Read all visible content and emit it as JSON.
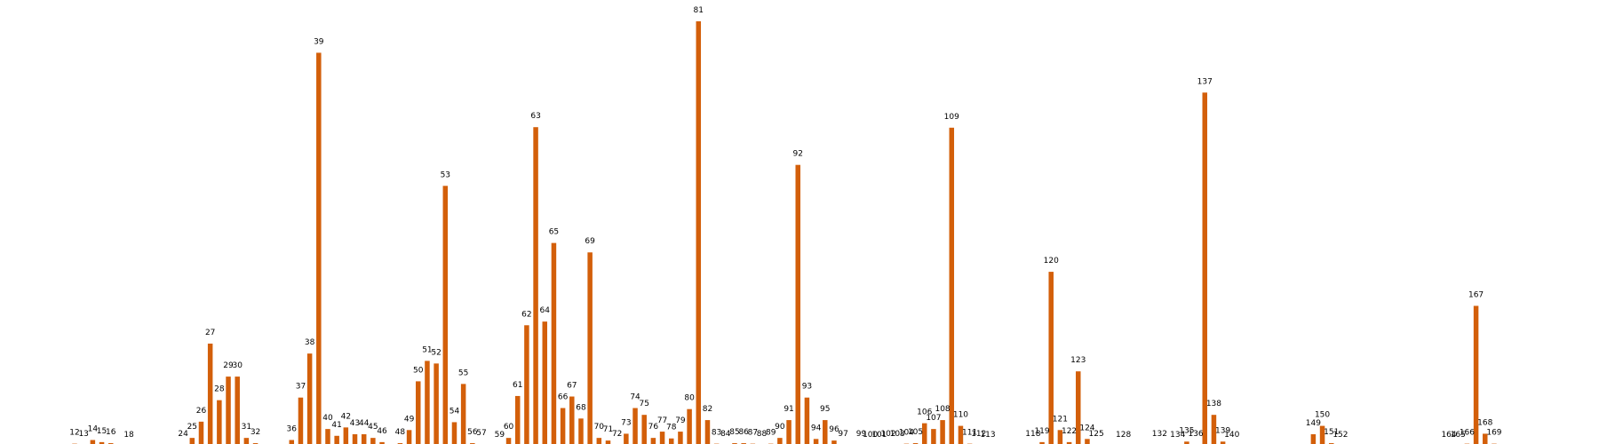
{
  "chart_data": {
    "type": "bar",
    "bar_color": "#d35f0a",
    "grid": false,
    "axes_visible": false,
    "title": "",
    "xlabel": "",
    "ylabel": "",
    "ylim": [
      0,
      81
    ],
    "bars": [
      {
        "x": 12,
        "label": "12",
        "value": 0.4
      },
      {
        "x": 13,
        "label": "13",
        "value": 0.2
      },
      {
        "x": 14,
        "label": "14",
        "value": 1.1
      },
      {
        "x": 15,
        "label": "15",
        "value": 0.7
      },
      {
        "x": 16,
        "label": "16",
        "value": 0.5
      },
      {
        "x": 18,
        "label": "18",
        "value": 0.0
      },
      {
        "x": 24,
        "label": "24",
        "value": 0.2
      },
      {
        "x": 25,
        "label": "25",
        "value": 1.5
      },
      {
        "x": 26,
        "label": "26",
        "value": 4.6
      },
      {
        "x": 27,
        "label": "27",
        "value": 19.5
      },
      {
        "x": 28,
        "label": "28",
        "value": 8.7
      },
      {
        "x": 29,
        "label": "29",
        "value": 13.2
      },
      {
        "x": 30,
        "label": "30",
        "value": 13.2
      },
      {
        "x": 31,
        "label": "31",
        "value": 1.5
      },
      {
        "x": 32,
        "label": "32",
        "value": 0.5
      },
      {
        "x": 36,
        "label": "36",
        "value": 1.1
      },
      {
        "x": 37,
        "label": "37",
        "value": 9.2
      },
      {
        "x": 38,
        "label": "38",
        "value": 17.6
      },
      {
        "x": 39,
        "label": "39",
        "value": 75.0
      },
      {
        "x": 40,
        "label": "40",
        "value": 3.2
      },
      {
        "x": 41,
        "label": "41",
        "value": 1.9
      },
      {
        "x": 42,
        "label": "42",
        "value": 3.5
      },
      {
        "x": 43,
        "label": "43",
        "value": 2.2
      },
      {
        "x": 44,
        "label": "44",
        "value": 2.2
      },
      {
        "x": 45,
        "label": "45",
        "value": 1.5
      },
      {
        "x": 46,
        "label": "46",
        "value": 0.7
      },
      {
        "x": 48,
        "label": "48",
        "value": 0.5
      },
      {
        "x": 49,
        "label": "49",
        "value": 3.0
      },
      {
        "x": 50,
        "label": "50",
        "value": 12.3
      },
      {
        "x": 51,
        "label": "51",
        "value": 16.2
      },
      {
        "x": 52,
        "label": "52",
        "value": 15.7
      },
      {
        "x": 53,
        "label": "53",
        "value": 49.6
      },
      {
        "x": 54,
        "label": "54",
        "value": 4.5
      },
      {
        "x": 55,
        "label": "55",
        "value": 11.8
      },
      {
        "x": 56,
        "label": "56",
        "value": 0.5
      },
      {
        "x": 57,
        "label": "57",
        "value": 0.3
      },
      {
        "x": 59,
        "label": "59",
        "value": 0.0
      },
      {
        "x": 60,
        "label": "60",
        "value": 1.5
      },
      {
        "x": 61,
        "label": "61",
        "value": 9.5
      },
      {
        "x": 62,
        "label": "62",
        "value": 23.0
      },
      {
        "x": 63,
        "label": "63",
        "value": 60.8
      },
      {
        "x": 64,
        "label": "64",
        "value": 23.7
      },
      {
        "x": 65,
        "label": "65",
        "value": 38.7
      },
      {
        "x": 66,
        "label": "66",
        "value": 7.2
      },
      {
        "x": 67,
        "label": "67",
        "value": 9.4
      },
      {
        "x": 68,
        "label": "68",
        "value": 5.2
      },
      {
        "x": 69,
        "label": "69",
        "value": 36.9
      },
      {
        "x": 70,
        "label": "70",
        "value": 1.5
      },
      {
        "x": 71,
        "label": "71",
        "value": 1.0
      },
      {
        "x": 72,
        "label": "72",
        "value": 0.2
      },
      {
        "x": 73,
        "label": "73",
        "value": 2.3
      },
      {
        "x": 74,
        "label": "74",
        "value": 7.2
      },
      {
        "x": 75,
        "label": "75",
        "value": 5.9
      },
      {
        "x": 76,
        "label": "76",
        "value": 1.5
      },
      {
        "x": 77,
        "label": "77",
        "value": 2.7
      },
      {
        "x": 78,
        "label": "78",
        "value": 1.4
      },
      {
        "x": 79,
        "label": "79",
        "value": 2.7
      },
      {
        "x": 80,
        "label": "80",
        "value": 7.0
      },
      {
        "x": 81,
        "label": "81",
        "value": 81.0
      },
      {
        "x": 82,
        "label": "82",
        "value": 4.9
      },
      {
        "x": 83,
        "label": "83",
        "value": 0.4
      },
      {
        "x": 84,
        "label": "84",
        "value": 0.2
      },
      {
        "x": 85,
        "label": "85",
        "value": 0.5
      },
      {
        "x": 86,
        "label": "86",
        "value": 0.5
      },
      {
        "x": 87,
        "label": "87",
        "value": 0.4
      },
      {
        "x": 88,
        "label": "88",
        "value": 0.2
      },
      {
        "x": 89,
        "label": "89",
        "value": 0.4
      },
      {
        "x": 90,
        "label": "90",
        "value": 1.5
      },
      {
        "x": 91,
        "label": "91",
        "value": 4.9
      },
      {
        "x": 92,
        "label": "92",
        "value": 53.6
      },
      {
        "x": 93,
        "label": "93",
        "value": 9.2
      },
      {
        "x": 94,
        "label": "94",
        "value": 1.3
      },
      {
        "x": 95,
        "label": "95",
        "value": 4.9
      },
      {
        "x": 96,
        "label": "96",
        "value": 1.0
      },
      {
        "x": 97,
        "label": "97",
        "value": 0.2
      },
      {
        "x": 99,
        "label": "99",
        "value": 0.2
      },
      {
        "x": 100,
        "label": "100",
        "value": 0.0
      },
      {
        "x": 101,
        "label": "101",
        "value": 0.0
      },
      {
        "x": 102,
        "label": "102",
        "value": 0.2
      },
      {
        "x": 103,
        "label": "103",
        "value": 0.2
      },
      {
        "x": 104,
        "label": "104",
        "value": 0.4
      },
      {
        "x": 105,
        "label": "105",
        "value": 0.5
      },
      {
        "x": 106,
        "label": "106",
        "value": 4.3
      },
      {
        "x": 107,
        "label": "107",
        "value": 3.2
      },
      {
        "x": 108,
        "label": "108",
        "value": 4.9
      },
      {
        "x": 109,
        "label": "109",
        "value": 60.7
      },
      {
        "x": 110,
        "label": "110",
        "value": 3.8
      },
      {
        "x": 111,
        "label": "111",
        "value": 0.4
      },
      {
        "x": 112,
        "label": "112",
        "value": 0.2
      },
      {
        "x": 113,
        "label": "113",
        "value": 0.0
      },
      {
        "x": 118,
        "label": "118",
        "value": 0.2
      },
      {
        "x": 119,
        "label": "119",
        "value": 0.7
      },
      {
        "x": 120,
        "label": "120",
        "value": 33.2
      },
      {
        "x": 121,
        "label": "121",
        "value": 3.0
      },
      {
        "x": 122,
        "label": "122",
        "value": 0.7
      },
      {
        "x": 123,
        "label": "123",
        "value": 14.2
      },
      {
        "x": 124,
        "label": "124",
        "value": 1.3
      },
      {
        "x": 125,
        "label": "125",
        "value": 0.2
      },
      {
        "x": 128,
        "label": "128",
        "value": 0.0
      },
      {
        "x": 132,
        "label": "132",
        "value": 0.2
      },
      {
        "x": 134,
        "label": "134",
        "value": 0.0
      },
      {
        "x": 135,
        "label": "135",
        "value": 0.8
      },
      {
        "x": 136,
        "label": "136",
        "value": 0.2
      },
      {
        "x": 137,
        "label": "137",
        "value": 67.4
      },
      {
        "x": 138,
        "label": "138",
        "value": 5.9
      },
      {
        "x": 139,
        "label": "139",
        "value": 0.8
      },
      {
        "x": 140,
        "label": "140",
        "value": 0.0
      },
      {
        "x": 149,
        "label": "149",
        "value": 2.2
      },
      {
        "x": 150,
        "label": "150",
        "value": 3.8
      },
      {
        "x": 151,
        "label": "151",
        "value": 0.5
      },
      {
        "x": 152,
        "label": "152",
        "value": 0.0
      },
      {
        "x": 164,
        "label": "164",
        "value": 0.0
      },
      {
        "x": 165,
        "label": "165",
        "value": 0.0
      },
      {
        "x": 166,
        "label": "166",
        "value": 0.4
      },
      {
        "x": 167,
        "label": "167",
        "value": 26.7
      },
      {
        "x": 168,
        "label": "168",
        "value": 2.3
      },
      {
        "x": 169,
        "label": "169",
        "value": 0.4
      }
    ]
  }
}
